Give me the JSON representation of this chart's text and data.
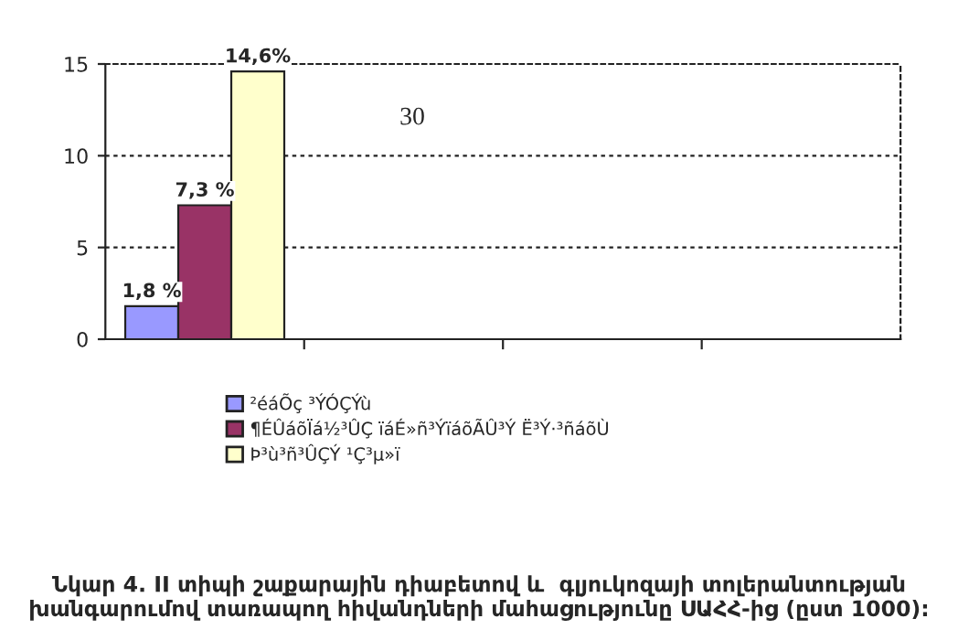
{
  "chart_data": {
    "type": "bar",
    "title": "Նկար 4. II տիպի շաքարային դիաբետով և  գլյուկոզայի տոլերանտության խանգարումով տառապող հիվանդների մահացությունը ՍԱՀՀ-ից (ըստ 1000):",
    "categories": [
      null,
      null,
      null,
      null
    ],
    "series": [
      {
        "name": "²éáÕç ³ÝÓÇÝù",
        "color": "#9999ff",
        "values": [
          1.8,
          null,
          null,
          null
        ],
        "value_labels": [
          "1,8 %",
          null,
          null,
          null
        ]
      },
      {
        "name": "¶ÉÛáõÏá½³ÛÇ ïáÉ»ñ³ÝïáõÃÛ³Ý Ë³Ý·³ñáõÙ",
        "color": "#993366",
        "values": [
          7.3,
          null,
          null,
          null
        ],
        "value_labels": [
          "7,3 %",
          null,
          null,
          null
        ]
      },
      {
        "name": "Þ³ù³ñ³ÛÇÝ ¹Ç³µ»ï",
        "color": "#ffffcc",
        "values": [
          14.6,
          null,
          null,
          null
        ],
        "value_labels": [
          "14,6%",
          null,
          null,
          null
        ]
      }
    ],
    "annotations": [
      {
        "text": "30"
      }
    ],
    "ylim": [
      0,
      15
    ],
    "yticks": [
      0,
      5,
      10,
      15
    ],
    "grid": "y",
    "legend": "bottom left"
  }
}
